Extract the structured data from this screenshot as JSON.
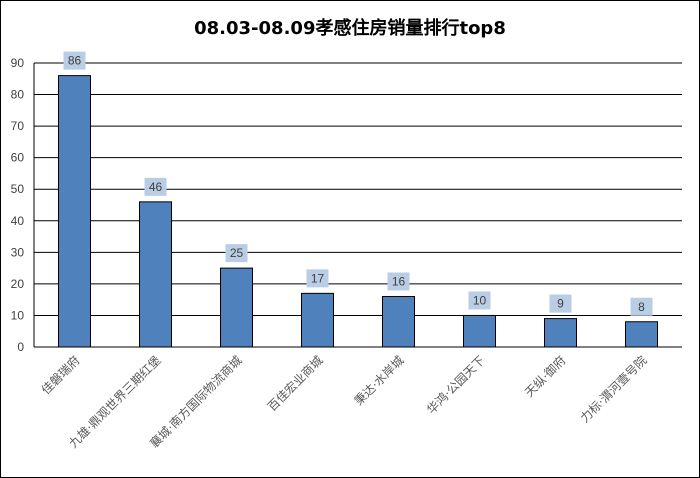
{
  "chart_data": {
    "type": "bar",
    "title": "08.03-08.09孝感住房销量排行top8",
    "categories": [
      "佳磐瑞府",
      "九雄·鼎观世界三期红堡",
      "襄城·南方国际物流商城",
      "百佳宏业商城",
      "秉达·水岸城",
      "华鸿·公园天下",
      "天纵·御府",
      "力标·渭河壹号院"
    ],
    "values": [
      86,
      46,
      25,
      17,
      16,
      10,
      9,
      8
    ],
    "ylim": [
      0,
      90
    ],
    "yticks": [
      0,
      10,
      20,
      30,
      40,
      50,
      60,
      70,
      80,
      90
    ],
    "grid": true,
    "legend": "none",
    "bar_color": "#4F81BD",
    "label_bg_color": "#B9CDE5"
  }
}
